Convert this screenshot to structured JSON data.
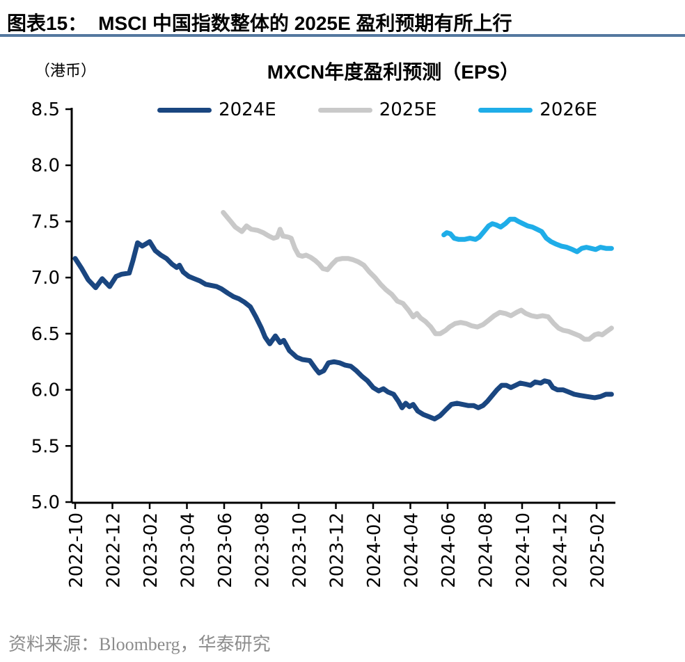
{
  "figure": {
    "caption_prefix": "图表15：",
    "caption_title": "MSCI 中国指数整体的 2025E 盈利预期有所上行",
    "source_note": "资料来源：Bloomberg，华泰研究"
  },
  "colors": {
    "caption_rule": "#54789F",
    "axis": "#000000",
    "source_text": "#8C8C8C"
  },
  "chart_data": {
    "type": "line",
    "title": "MXCN年度盈利预测（EPS）",
    "unit_label": "（港币）",
    "legend_position": "top",
    "grid": false,
    "x_axis": {
      "unit": "month",
      "start": "2022-10",
      "end": "2025-02",
      "tick_interval_months": 2,
      "tick_labels": [
        "2022-10",
        "2022-12",
        "2023-02",
        "2023-04",
        "2023-06",
        "2023-08",
        "2023-10",
        "2023-12",
        "2024-02",
        "2024-04",
        "2024-06",
        "2024-08",
        "2024-10",
        "2024-12",
        "2025-02"
      ]
    },
    "y_axis": {
      "min": 5.0,
      "max": 8.5,
      "step": 0.5,
      "tick_labels": [
        "8.5",
        "8.0",
        "7.5",
        "7.0",
        "6.5",
        "6.0",
        "5.5",
        "5.0"
      ]
    },
    "series": [
      {
        "name": "2024E",
        "color": "#1A4680",
        "x_unit": "months_since_2022-10",
        "points": [
          [
            0,
            7.17
          ],
          [
            0.35,
            7.08
          ],
          [
            0.7,
            6.98
          ],
          [
            1.1,
            6.91
          ],
          [
            1.45,
            6.99
          ],
          [
            1.85,
            6.92
          ],
          [
            2.2,
            7.01
          ],
          [
            2.5,
            7.03
          ],
          [
            2.9,
            7.04
          ],
          [
            3.1,
            7.15
          ],
          [
            3.35,
            7.31
          ],
          [
            3.6,
            7.28
          ],
          [
            3.8,
            7.3
          ],
          [
            4.0,
            7.32
          ],
          [
            4.3,
            7.24
          ],
          [
            4.6,
            7.2
          ],
          [
            4.9,
            7.17
          ],
          [
            5.2,
            7.12
          ],
          [
            5.45,
            7.09
          ],
          [
            5.6,
            7.11
          ],
          [
            5.8,
            7.05
          ],
          [
            6.1,
            7.01
          ],
          [
            6.4,
            6.99
          ],
          [
            6.7,
            6.97
          ],
          [
            7.0,
            6.94
          ],
          [
            7.3,
            6.93
          ],
          [
            7.6,
            6.92
          ],
          [
            7.85,
            6.9
          ],
          [
            8.2,
            6.86
          ],
          [
            8.5,
            6.83
          ],
          [
            8.8,
            6.81
          ],
          [
            9.1,
            6.78
          ],
          [
            9.4,
            6.74
          ],
          [
            9.7,
            6.65
          ],
          [
            10.0,
            6.55
          ],
          [
            10.2,
            6.47
          ],
          [
            10.45,
            6.41
          ],
          [
            10.75,
            6.48
          ],
          [
            11.0,
            6.42
          ],
          [
            11.2,
            6.44
          ],
          [
            11.5,
            6.35
          ],
          [
            11.9,
            6.29
          ],
          [
            12.2,
            6.27
          ],
          [
            12.6,
            6.26
          ],
          [
            12.9,
            6.19
          ],
          [
            13.1,
            6.15
          ],
          [
            13.35,
            6.17
          ],
          [
            13.6,
            6.24
          ],
          [
            13.9,
            6.25
          ],
          [
            14.2,
            6.24
          ],
          [
            14.5,
            6.22
          ],
          [
            14.8,
            6.21
          ],
          [
            15.1,
            6.17
          ],
          [
            15.4,
            6.12
          ],
          [
            15.7,
            6.08
          ],
          [
            16.0,
            6.02
          ],
          [
            16.3,
            5.99
          ],
          [
            16.55,
            6.01
          ],
          [
            16.8,
            5.98
          ],
          [
            17.1,
            5.96
          ],
          [
            17.35,
            5.9
          ],
          [
            17.55,
            5.84
          ],
          [
            17.75,
            5.88
          ],
          [
            17.95,
            5.85
          ],
          [
            18.15,
            5.87
          ],
          [
            18.4,
            5.81
          ],
          [
            18.7,
            5.78
          ],
          [
            19.0,
            5.76
          ],
          [
            19.3,
            5.74
          ],
          [
            19.6,
            5.77
          ],
          [
            19.9,
            5.82
          ],
          [
            20.2,
            5.87
          ],
          [
            20.5,
            5.88
          ],
          [
            20.8,
            5.87
          ],
          [
            21.1,
            5.86
          ],
          [
            21.4,
            5.86
          ],
          [
            21.65,
            5.84
          ],
          [
            21.9,
            5.86
          ],
          [
            22.15,
            5.9
          ],
          [
            22.4,
            5.95
          ],
          [
            22.65,
            6.0
          ],
          [
            22.9,
            6.04
          ],
          [
            23.15,
            6.04
          ],
          [
            23.4,
            6.02
          ],
          [
            23.65,
            6.04
          ],
          [
            23.9,
            6.06
          ],
          [
            24.2,
            6.05
          ],
          [
            24.45,
            6.04
          ],
          [
            24.7,
            6.07
          ],
          [
            25.0,
            6.06
          ],
          [
            25.2,
            6.08
          ],
          [
            25.45,
            6.07
          ],
          [
            25.65,
            6.02
          ],
          [
            25.9,
            6.0
          ],
          [
            26.2,
            6.0
          ],
          [
            26.5,
            5.98
          ],
          [
            26.8,
            5.96
          ],
          [
            27.1,
            5.95
          ],
          [
            27.5,
            5.94
          ],
          [
            27.9,
            5.93
          ],
          [
            28.2,
            5.94
          ],
          [
            28.5,
            5.96
          ],
          [
            28.8,
            5.96
          ]
        ]
      },
      {
        "name": "2025E",
        "color": "#C9C9C9",
        "x_unit": "months_since_2022-10",
        "points": [
          [
            7.95,
            7.58
          ],
          [
            8.1,
            7.55
          ],
          [
            8.35,
            7.5
          ],
          [
            8.6,
            7.45
          ],
          [
            8.95,
            7.41
          ],
          [
            9.2,
            7.46
          ],
          [
            9.45,
            7.43
          ],
          [
            9.8,
            7.42
          ],
          [
            10.1,
            7.4
          ],
          [
            10.4,
            7.37
          ],
          [
            10.65,
            7.35
          ],
          [
            10.85,
            7.36
          ],
          [
            11.0,
            7.43
          ],
          [
            11.15,
            7.37
          ],
          [
            11.45,
            7.36
          ],
          [
            11.6,
            7.35
          ],
          [
            11.8,
            7.26
          ],
          [
            12.0,
            7.2
          ],
          [
            12.2,
            7.19
          ],
          [
            12.4,
            7.2
          ],
          [
            12.65,
            7.18
          ],
          [
            12.9,
            7.15
          ],
          [
            13.1,
            7.12
          ],
          [
            13.3,
            7.08
          ],
          [
            13.55,
            7.07
          ],
          [
            13.8,
            7.12
          ],
          [
            14.05,
            7.16
          ],
          [
            14.35,
            7.17
          ],
          [
            14.65,
            7.17
          ],
          [
            14.9,
            7.16
          ],
          [
            15.2,
            7.14
          ],
          [
            15.5,
            7.11
          ],
          [
            15.8,
            7.05
          ],
          [
            16.1,
            7.0
          ],
          [
            16.4,
            6.94
          ],
          [
            16.7,
            6.89
          ],
          [
            17.0,
            6.85
          ],
          [
            17.3,
            6.79
          ],
          [
            17.6,
            6.77
          ],
          [
            17.9,
            6.71
          ],
          [
            18.15,
            6.65
          ],
          [
            18.35,
            6.68
          ],
          [
            18.55,
            6.64
          ],
          [
            18.8,
            6.61
          ],
          [
            19.1,
            6.56
          ],
          [
            19.35,
            6.5
          ],
          [
            19.6,
            6.5
          ],
          [
            19.9,
            6.53
          ],
          [
            20.1,
            6.56
          ],
          [
            20.4,
            6.59
          ],
          [
            20.7,
            6.6
          ],
          [
            21.0,
            6.59
          ],
          [
            21.3,
            6.57
          ],
          [
            21.6,
            6.56
          ],
          [
            21.9,
            6.58
          ],
          [
            22.2,
            6.62
          ],
          [
            22.5,
            6.66
          ],
          [
            22.8,
            6.69
          ],
          [
            23.1,
            6.68
          ],
          [
            23.4,
            6.66
          ],
          [
            23.7,
            6.69
          ],
          [
            23.95,
            6.71
          ],
          [
            24.2,
            6.68
          ],
          [
            24.5,
            6.66
          ],
          [
            24.8,
            6.65
          ],
          [
            25.1,
            6.66
          ],
          [
            25.4,
            6.65
          ],
          [
            25.7,
            6.59
          ],
          [
            25.95,
            6.55
          ],
          [
            26.2,
            6.53
          ],
          [
            26.5,
            6.52
          ],
          [
            26.8,
            6.5
          ],
          [
            27.1,
            6.48
          ],
          [
            27.35,
            6.45
          ],
          [
            27.6,
            6.45
          ],
          [
            27.9,
            6.49
          ],
          [
            28.1,
            6.5
          ],
          [
            28.3,
            6.49
          ],
          [
            28.55,
            6.52
          ],
          [
            28.8,
            6.55
          ]
        ]
      },
      {
        "name": "2026E",
        "color": "#1FADE8",
        "x_unit": "months_since_2022-10",
        "points": [
          [
            19.8,
            7.38
          ],
          [
            19.95,
            7.4
          ],
          [
            20.15,
            7.39
          ],
          [
            20.35,
            7.35
          ],
          [
            20.6,
            7.34
          ],
          [
            20.9,
            7.34
          ],
          [
            21.2,
            7.35
          ],
          [
            21.5,
            7.34
          ],
          [
            21.7,
            7.36
          ],
          [
            21.95,
            7.41
          ],
          [
            22.2,
            7.46
          ],
          [
            22.4,
            7.48
          ],
          [
            22.6,
            7.47
          ],
          [
            22.85,
            7.45
          ],
          [
            23.1,
            7.48
          ],
          [
            23.35,
            7.52
          ],
          [
            23.6,
            7.52
          ],
          [
            23.8,
            7.5
          ],
          [
            24.05,
            7.48
          ],
          [
            24.3,
            7.46
          ],
          [
            24.55,
            7.45
          ],
          [
            24.8,
            7.43
          ],
          [
            25.05,
            7.41
          ],
          [
            25.3,
            7.35
          ],
          [
            25.55,
            7.32
          ],
          [
            25.8,
            7.3
          ],
          [
            26.1,
            7.28
          ],
          [
            26.4,
            7.27
          ],
          [
            26.7,
            7.25
          ],
          [
            26.95,
            7.23
          ],
          [
            27.2,
            7.26
          ],
          [
            27.45,
            7.27
          ],
          [
            27.7,
            7.26
          ],
          [
            27.95,
            7.25
          ],
          [
            28.2,
            7.27
          ],
          [
            28.5,
            7.26
          ],
          [
            28.8,
            7.26
          ]
        ]
      }
    ]
  }
}
